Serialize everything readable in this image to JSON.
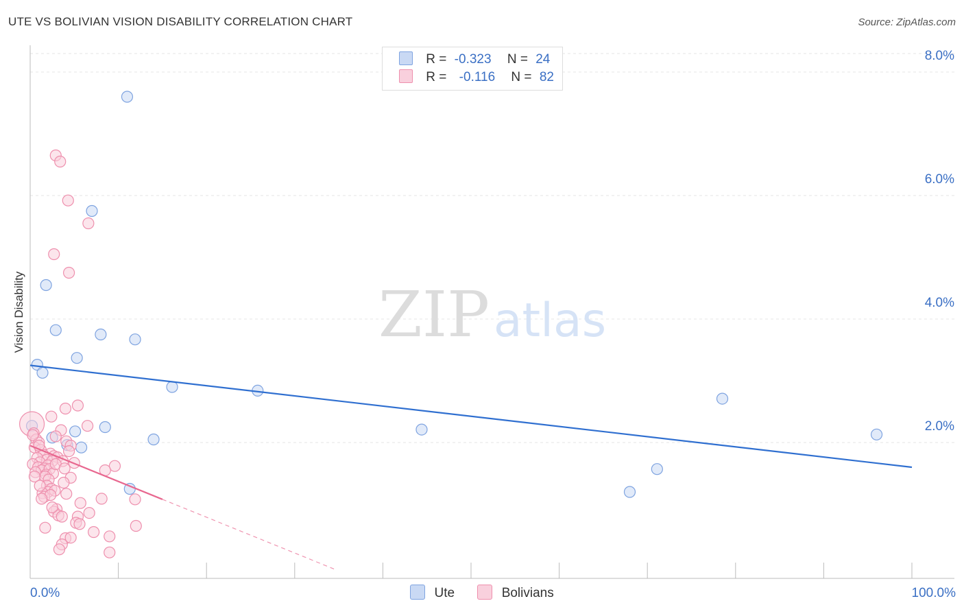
{
  "title": "UTE VS BOLIVIAN VISION DISABILITY CORRELATION CHART",
  "source": "Source: ZipAtlas.com",
  "watermark": {
    "zip": "ZIP",
    "atlas": "atlas"
  },
  "legend": {
    "rows": [
      {
        "r_label": "R =",
        "r_value": "-0.323",
        "n_label": "N =",
        "n_value": "24"
      },
      {
        "r_label": "R =",
        "r_value": "-0.116",
        "n_label": "N =",
        "n_value": "82"
      }
    ]
  },
  "chart_data": {
    "type": "scatter",
    "title": "UTE VS BOLIVIAN VISION DISABILITY CORRELATION CHART",
    "xlabel": "",
    "ylabel": "Vision Disability",
    "xlim": [
      0,
      100
    ],
    "ylim": [
      -0.2,
      8.3
    ],
    "x_tick_labels": [
      {
        "value": 0,
        "label": "0.0%"
      },
      {
        "value": 100,
        "label": "100.0%"
      }
    ],
    "y_ticks": [
      {
        "value": 2.0,
        "label": "2.0%"
      },
      {
        "value": 4.0,
        "label": "4.0%"
      },
      {
        "value": 6.0,
        "label": "6.0%"
      },
      {
        "value": 8.0,
        "label": "8.0%"
      }
    ],
    "series": [
      {
        "name": "Ute",
        "color": "#7ea3e0",
        "fill": "#c9d9f4",
        "line_color": "#2f6fd0",
        "trend": {
          "x": [
            0,
            100
          ],
          "y": [
            3.25,
            1.6
          ]
        },
        "points": [
          {
            "x": 11.0,
            "y": 7.6
          },
          {
            "x": 7.0,
            "y": 5.75
          },
          {
            "x": 1.8,
            "y": 4.55
          },
          {
            "x": 2.9,
            "y": 3.82
          },
          {
            "x": 8.0,
            "y": 3.75
          },
          {
            "x": 11.9,
            "y": 3.67
          },
          {
            "x": 5.3,
            "y": 3.37
          },
          {
            "x": 0.8,
            "y": 3.26
          },
          {
            "x": 1.4,
            "y": 3.13
          },
          {
            "x": 16.1,
            "y": 2.9
          },
          {
            "x": 25.8,
            "y": 2.84
          },
          {
            "x": 78.5,
            "y": 2.71
          },
          {
            "x": 8.5,
            "y": 2.25
          },
          {
            "x": 44.4,
            "y": 2.21
          },
          {
            "x": 5.1,
            "y": 2.18
          },
          {
            "x": 96.0,
            "y": 2.13
          },
          {
            "x": 2.5,
            "y": 2.08
          },
          {
            "x": 14.0,
            "y": 2.05
          },
          {
            "x": 4.2,
            "y": 1.96
          },
          {
            "x": 5.8,
            "y": 1.92
          },
          {
            "x": 71.1,
            "y": 1.57
          },
          {
            "x": 11.3,
            "y": 1.25
          },
          {
            "x": 68.0,
            "y": 1.2
          },
          {
            "x": 0.2,
            "y": 2.27
          }
        ]
      },
      {
        "name": "Bolivians",
        "color": "#ee8fad",
        "fill": "#f9d0dd",
        "line_color": "#e8678f",
        "trend": {
          "x": [
            0,
            15
          ],
          "y": [
            1.95,
            1.08
          ]
        },
        "trend_extension": {
          "x": [
            15,
            34.5
          ],
          "y": [
            1.08,
            -0.05
          ]
        },
        "points": [
          {
            "x": 2.9,
            "y": 6.65
          },
          {
            "x": 3.4,
            "y": 6.55
          },
          {
            "x": 4.3,
            "y": 5.92
          },
          {
            "x": 6.6,
            "y": 5.55
          },
          {
            "x": 2.7,
            "y": 5.05
          },
          {
            "x": 4.4,
            "y": 4.75
          },
          {
            "x": 5.4,
            "y": 2.6
          },
          {
            "x": 4.0,
            "y": 2.55
          },
          {
            "x": 2.4,
            "y": 2.42
          },
          {
            "x": 6.5,
            "y": 2.27
          },
          {
            "x": 3.5,
            "y": 2.2
          },
          {
            "x": 0.2,
            "y": 2.3
          },
          {
            "x": 0.4,
            "y": 2.15
          },
          {
            "x": 0.7,
            "y": 2.05
          },
          {
            "x": 1.0,
            "y": 2.0
          },
          {
            "x": 2.9,
            "y": 2.1
          },
          {
            "x": 4.1,
            "y": 2.02
          },
          {
            "x": 4.6,
            "y": 1.95
          },
          {
            "x": 0.5,
            "y": 1.92
          },
          {
            "x": 1.2,
            "y": 1.88
          },
          {
            "x": 4.4,
            "y": 1.86
          },
          {
            "x": 2.3,
            "y": 1.82
          },
          {
            "x": 1.5,
            "y": 1.8
          },
          {
            "x": 2.7,
            "y": 1.78
          },
          {
            "x": 3.1,
            "y": 1.76
          },
          {
            "x": 0.8,
            "y": 1.75
          },
          {
            "x": 1.9,
            "y": 1.72
          },
          {
            "x": 2.5,
            "y": 1.7
          },
          {
            "x": 1.1,
            "y": 1.68
          },
          {
            "x": 0.3,
            "y": 1.65
          },
          {
            "x": 2.0,
            "y": 1.63
          },
          {
            "x": 5.0,
            "y": 1.67
          },
          {
            "x": 0.9,
            "y": 1.6
          },
          {
            "x": 1.6,
            "y": 1.58
          },
          {
            "x": 1.3,
            "y": 1.55
          },
          {
            "x": 2.2,
            "y": 1.57
          },
          {
            "x": 0.6,
            "y": 1.52
          },
          {
            "x": 1.8,
            "y": 1.48
          },
          {
            "x": 2.6,
            "y": 1.5
          },
          {
            "x": 9.6,
            "y": 1.62
          },
          {
            "x": 8.5,
            "y": 1.55
          },
          {
            "x": 1.7,
            "y": 1.45
          },
          {
            "x": 2.1,
            "y": 1.4
          },
          {
            "x": 4.6,
            "y": 1.43
          },
          {
            "x": 1.9,
            "y": 1.3
          },
          {
            "x": 2.4,
            "y": 1.25
          },
          {
            "x": 2.0,
            "y": 1.2
          },
          {
            "x": 1.4,
            "y": 1.18
          },
          {
            "x": 4.1,
            "y": 1.17
          },
          {
            "x": 2.8,
            "y": 1.22
          },
          {
            "x": 1.6,
            "y": 1.12
          },
          {
            "x": 2.3,
            "y": 1.15
          },
          {
            "x": 1.3,
            "y": 1.09
          },
          {
            "x": 8.1,
            "y": 1.09
          },
          {
            "x": 11.9,
            "y": 1.08
          },
          {
            "x": 5.7,
            "y": 1.02
          },
          {
            "x": 3.0,
            "y": 0.92
          },
          {
            "x": 6.7,
            "y": 0.86
          },
          {
            "x": 2.7,
            "y": 0.88
          },
          {
            "x": 3.2,
            "y": 0.82
          },
          {
            "x": 3.6,
            "y": 0.8
          },
          {
            "x": 5.4,
            "y": 0.8
          },
          {
            "x": 5.2,
            "y": 0.7
          },
          {
            "x": 5.6,
            "y": 0.68
          },
          {
            "x": 12.0,
            "y": 0.65
          },
          {
            "x": 1.7,
            "y": 0.62
          },
          {
            "x": 7.2,
            "y": 0.55
          },
          {
            "x": 9.0,
            "y": 0.48
          },
          {
            "x": 4.0,
            "y": 0.45
          },
          {
            "x": 4.6,
            "y": 0.46
          },
          {
            "x": 3.6,
            "y": 0.35
          },
          {
            "x": 3.3,
            "y": 0.27
          },
          {
            "x": 9.0,
            "y": 0.22
          },
          {
            "x": 0.3,
            "y": 2.12
          },
          {
            "x": 1.0,
            "y": 1.95
          },
          {
            "x": 3.7,
            "y": 1.7
          },
          {
            "x": 2.9,
            "y": 1.65
          },
          {
            "x": 0.5,
            "y": 1.45
          },
          {
            "x": 3.8,
            "y": 1.35
          },
          {
            "x": 2.5,
            "y": 0.95
          },
          {
            "x": 3.9,
            "y": 1.58
          },
          {
            "x": 1.1,
            "y": 1.3
          }
        ]
      }
    ]
  },
  "bottom_legend": [
    {
      "label": "Ute",
      "fill": "#c9d9f4",
      "border": "#7ea3e0"
    },
    {
      "label": "Bolivians",
      "fill": "#f9d0dd",
      "border": "#ee8fad"
    }
  ]
}
